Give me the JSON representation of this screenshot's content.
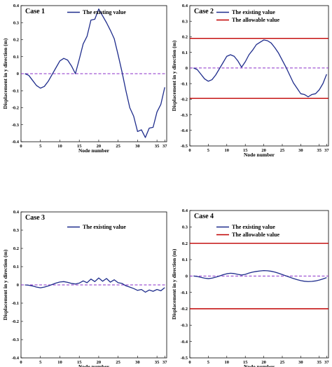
{
  "colors": {
    "existing": "#1f2d8c",
    "allowable": "#c00000",
    "zero_line": "#8b2fc9"
  },
  "chart_data": [
    {
      "type": "line",
      "case_label": "Case 1",
      "xlabel": "Node number",
      "ylabel": "Displacement in y direction (m)",
      "x_ticks": [
        "0",
        "5",
        "10",
        "15",
        "20",
        "25",
        "30",
        "35",
        "37"
      ],
      "y_ticks": [
        "0.4",
        "0.3",
        "0.2",
        "0.1",
        "0",
        "-0.1",
        "-0.2",
        "-0.3",
        "-0.4"
      ],
      "xlim": [
        0,
        37.5
      ],
      "ylim": [
        -0.4,
        0.4
      ],
      "grid": false,
      "zero_line": true,
      "legend_position": "top-right",
      "series": [
        {
          "name": "The existing value",
          "kind": "existing",
          "x": [
            1,
            2,
            3,
            4,
            5,
            6,
            7,
            8,
            9,
            10,
            11,
            12,
            13,
            14,
            15,
            16,
            17,
            18,
            19,
            20,
            21,
            22,
            23,
            24,
            25,
            26,
            27,
            28,
            29,
            30,
            31,
            32,
            33,
            34,
            35,
            36,
            37
          ],
          "y": [
            0,
            -0.01,
            -0.04,
            -0.07,
            -0.085,
            -0.075,
            -0.045,
            -0.005,
            0.035,
            0.075,
            0.09,
            0.08,
            0.045,
            0,
            0.085,
            0.175,
            0.22,
            0.315,
            0.32,
            0.38,
            0.34,
            0.3,
            0.255,
            0.205,
            0.11,
            0.01,
            -0.1,
            -0.2,
            -0.25,
            -0.34,
            -0.33,
            -0.375,
            -0.32,
            -0.315,
            -0.225,
            -0.18,
            -0.08
          ]
        }
      ]
    },
    {
      "type": "line",
      "case_label": "Case 2",
      "xlabel": "Node number",
      "ylabel": "Displacement in y direction (m)",
      "x_ticks": [
        "0",
        "5",
        "10",
        "15",
        "20",
        "25",
        "30",
        "35",
        "37"
      ],
      "y_ticks": [
        "0.4",
        "0.3",
        "0.2",
        "0.1",
        "0",
        "-0.1",
        "-0.2",
        "-0.3",
        "-0.4",
        "-0.5"
      ],
      "xlim": [
        0,
        37.5
      ],
      "ylim": [
        -0.5,
        0.4
      ],
      "grid": false,
      "zero_line": true,
      "legend_position": "top-right",
      "series": [
        {
          "name": "The existing value",
          "kind": "existing",
          "x": [
            1,
            2,
            3,
            4,
            5,
            6,
            7,
            8,
            9,
            10,
            11,
            12,
            13,
            14,
            15,
            16,
            17,
            18,
            19,
            20,
            21,
            22,
            23,
            24,
            25,
            26,
            27,
            28,
            29,
            30,
            31,
            32,
            33,
            34,
            35,
            36,
            37
          ],
          "y": [
            0,
            -0.01,
            -0.04,
            -0.07,
            -0.085,
            -0.075,
            -0.045,
            -0.005,
            0.035,
            0.075,
            0.085,
            0.075,
            0.045,
            0.005,
            0.04,
            0.085,
            0.115,
            0.15,
            0.165,
            0.18,
            0.175,
            0.16,
            0.13,
            0.095,
            0.05,
            0.005,
            -0.045,
            -0.095,
            -0.13,
            -0.165,
            -0.17,
            -0.185,
            -0.17,
            -0.165,
            -0.14,
            -0.1,
            -0.04
          ]
        },
        {
          "name": "The allowable value",
          "kind": "allowable",
          "x": [
            0,
            37.5
          ],
          "y": [
            0.19,
            0.19
          ]
        },
        {
          "name": "The allowable value",
          "kind": "allowable",
          "x": [
            0,
            37.5
          ],
          "y": [
            -0.195,
            -0.195
          ]
        }
      ]
    },
    {
      "type": "line",
      "case_label": "Case 3",
      "xlabel": "Node number",
      "ylabel": "Displacement in y direction (m)",
      "x_ticks": [
        "0",
        "5",
        "10",
        "15",
        "20",
        "25",
        "30",
        "35",
        "37"
      ],
      "y_ticks": [
        "0.4",
        "0.3",
        "0.2",
        "0.1",
        "0",
        "-0.1",
        "-0.2",
        "-0.3",
        "-0.4"
      ],
      "xlim": [
        0,
        37.5
      ],
      "ylim": [
        -0.4,
        0.4
      ],
      "grid": false,
      "zero_line": true,
      "legend_position": "top-right",
      "series": [
        {
          "name": "The existing value",
          "kind": "existing",
          "x": [
            1,
            2,
            3,
            4,
            5,
            6,
            7,
            8,
            9,
            10,
            11,
            12,
            13,
            14,
            15,
            16,
            17,
            18,
            19,
            20,
            21,
            22,
            23,
            24,
            25,
            26,
            27,
            28,
            29,
            30,
            31,
            32,
            33,
            34,
            35,
            36,
            37
          ],
          "y": [
            0,
            -0.002,
            -0.006,
            -0.012,
            -0.016,
            -0.012,
            -0.006,
            0.002,
            0.01,
            0.016,
            0.018,
            0.014,
            0.008,
            0.005,
            0.01,
            0.022,
            0.012,
            0.032,
            0.018,
            0.038,
            0.02,
            0.035,
            0.015,
            0.028,
            0.012,
            0.008,
            -0.005,
            -0.012,
            -0.02,
            -0.03,
            -0.025,
            -0.04,
            -0.028,
            -0.035,
            -0.025,
            -0.032,
            -0.015
          ]
        }
      ]
    },
    {
      "type": "line",
      "case_label": "Case 4",
      "xlabel": "Node number",
      "ylabel": "Displacement in y direction (m)",
      "x_ticks": [
        "0",
        "5",
        "10",
        "15",
        "20",
        "25",
        "30",
        "35",
        "37"
      ],
      "y_ticks": [
        "0.4",
        "0.3",
        "0.2",
        "0.1",
        "0",
        "-0.1",
        "-0.2",
        "-0.3",
        "-0.4",
        "-0.5"
      ],
      "xlim": [
        0,
        37.5
      ],
      "ylim": [
        -0.5,
        0.4
      ],
      "grid": false,
      "zero_line": true,
      "legend_position": "top-right",
      "series": [
        {
          "name": "The existing value",
          "kind": "existing",
          "x": [
            1,
            2,
            3,
            4,
            5,
            6,
            7,
            8,
            9,
            10,
            11,
            12,
            13,
            14,
            15,
            16,
            17,
            18,
            19,
            20,
            21,
            22,
            23,
            24,
            25,
            26,
            27,
            28,
            29,
            30,
            31,
            32,
            33,
            34,
            35,
            36,
            37
          ],
          "y": [
            0,
            -0.003,
            -0.008,
            -0.013,
            -0.016,
            -0.013,
            -0.007,
            0,
            0.008,
            0.014,
            0.017,
            0.015,
            0.01,
            0.006,
            0.01,
            0.018,
            0.024,
            0.028,
            0.031,
            0.033,
            0.032,
            0.029,
            0.024,
            0.017,
            0.009,
            0.001,
            -0.007,
            -0.015,
            -0.022,
            -0.028,
            -0.032,
            -0.034,
            -0.033,
            -0.03,
            -0.025,
            -0.018,
            -0.01
          ]
        },
        {
          "name": "The allowable value",
          "kind": "allowable",
          "x": [
            0,
            37.5
          ],
          "y": [
            0.2,
            0.2
          ]
        },
        {
          "name": "The allowable value",
          "kind": "allowable",
          "x": [
            0,
            37.5
          ],
          "y": [
            -0.2,
            -0.2
          ]
        }
      ]
    }
  ]
}
